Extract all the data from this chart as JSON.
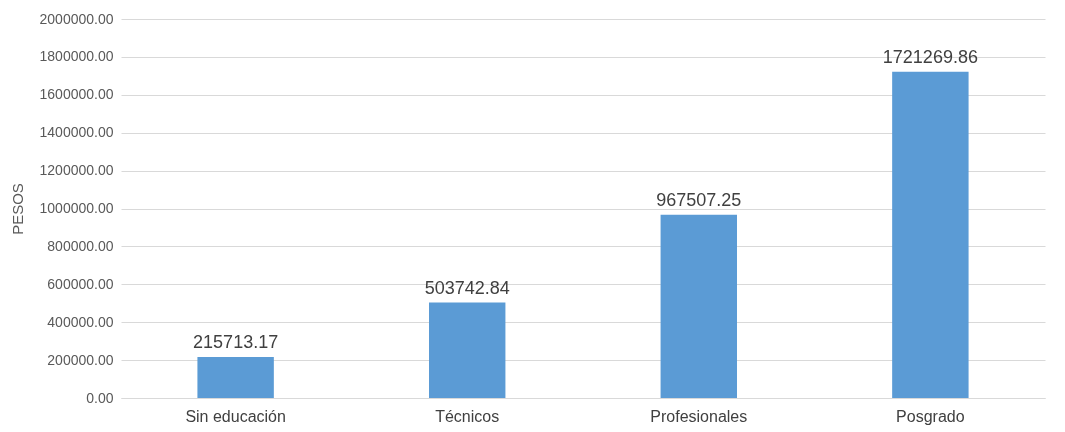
{
  "chart_data": {
    "type": "bar",
    "ylabel": "PESOS",
    "categories": [
      "Sin educación",
      "Técnicos",
      "Profesionales",
      "Posgrado"
    ],
    "values": [
      215713.17,
      503742.84,
      967507.25,
      1721269.86
    ],
    "color": "#5b9bd5",
    "data_labels": true,
    "grid": "y",
    "legend": false,
    "ylim": [
      0,
      2000000
    ],
    "yticks": [
      {
        "value": 0,
        "label": "0.00"
      },
      {
        "value": 200000,
        "label": "200000.00"
      },
      {
        "value": 400000,
        "label": "400000.00"
      },
      {
        "value": 600000,
        "label": "600000.00"
      },
      {
        "value": 800000,
        "label": "800000.00"
      },
      {
        "value": 1000000,
        "label": "1000000.00"
      },
      {
        "value": 1200000,
        "label": "1200000.00"
      },
      {
        "value": 1400000,
        "label": "1400000.00"
      },
      {
        "value": 1600000,
        "label": "1600000.00"
      },
      {
        "value": 1800000,
        "label": "1800000.00"
      },
      {
        "value": 2000000,
        "label": "2000000.00"
      }
    ]
  }
}
